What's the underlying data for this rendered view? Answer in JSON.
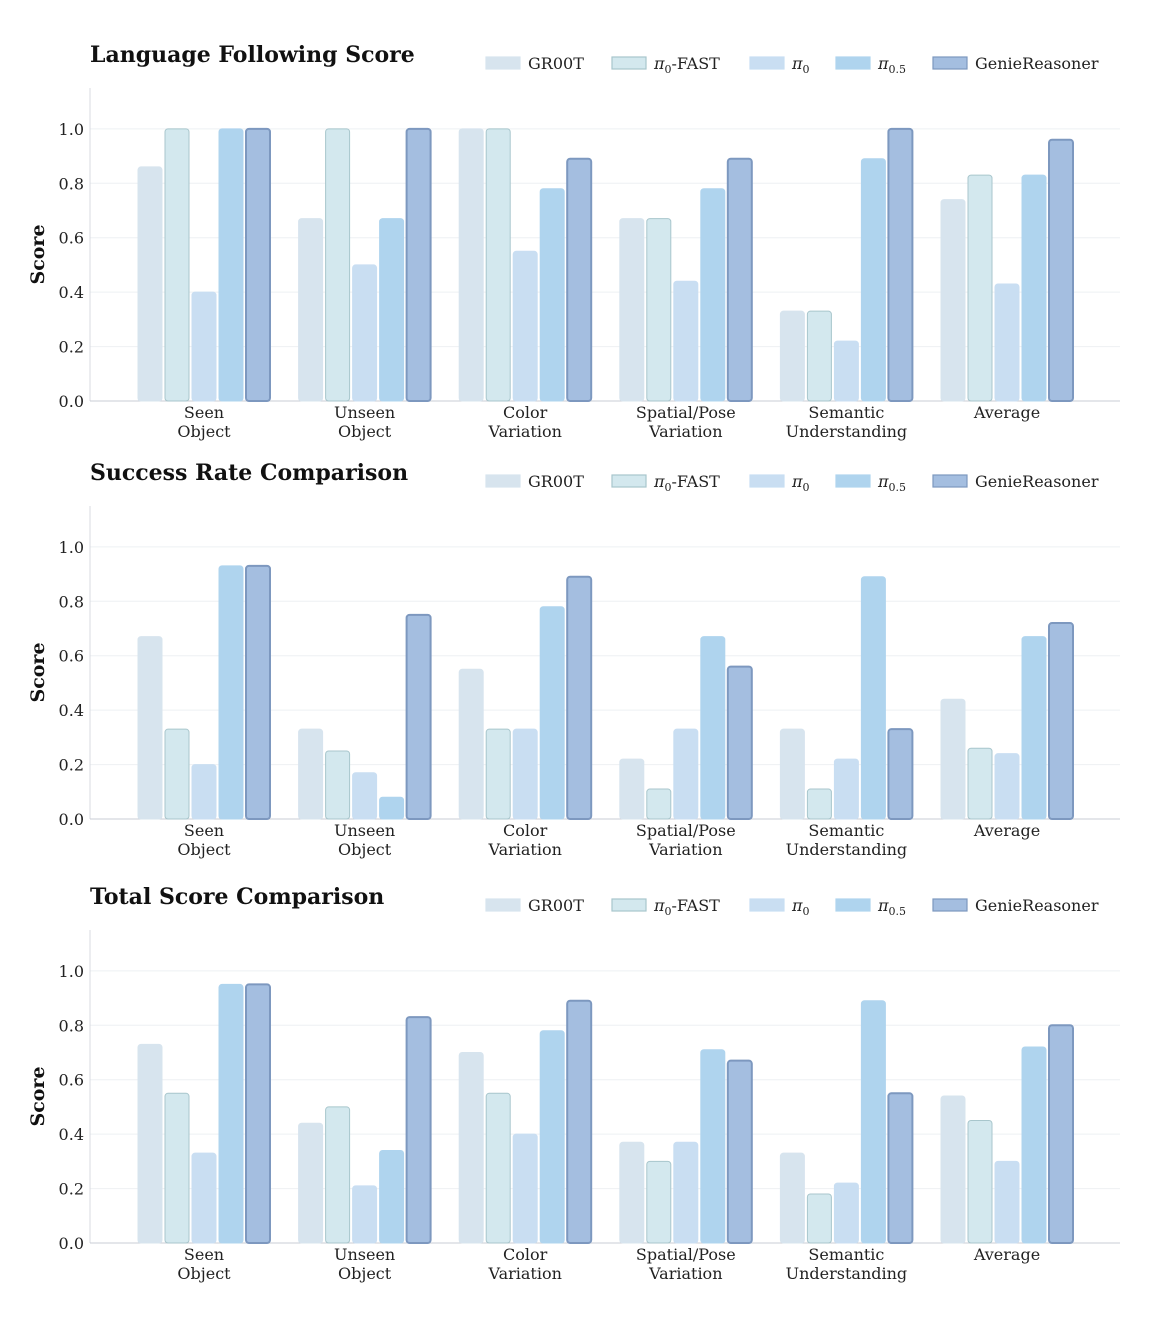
{
  "series_style": [
    {
      "key": "GR00T",
      "fill": "#d7e4ee",
      "stroke": "#d7e4ee",
      "main": "GR00T",
      "sub": "",
      "suffix": ""
    },
    {
      "key": "pi0-FAST",
      "fill": "#d3e8ee",
      "stroke": "#a8c6cc",
      "main": "π",
      "sub": "0",
      "suffix": "-FAST"
    },
    {
      "key": "pi0",
      "fill": "#c9def2",
      "stroke": "#c9def2",
      "main": "π",
      "sub": "0",
      "suffix": ""
    },
    {
      "key": "pi0.5",
      "fill": "#afd4ee",
      "stroke": "#afd4ee",
      "main": "π",
      "sub": "0.5",
      "suffix": ""
    },
    {
      "key": "GenieReasoner",
      "fill": "#a4bee0",
      "stroke": "#7d98bf",
      "main": "GenieReasoner",
      "sub": "",
      "suffix": ""
    }
  ],
  "chart_data": [
    {
      "type": "bar",
      "title": "Language Following Score",
      "ylabel": "Score",
      "ylim": [
        0,
        1.15
      ],
      "yticks": [
        "0.0",
        "0.2",
        "0.4",
        "0.6",
        "0.8",
        "1.0"
      ],
      "grid": true,
      "legend": "top-right",
      "categories": [
        [
          "Seen",
          "Object"
        ],
        [
          "Unseen",
          "Object"
        ],
        [
          "Color",
          "Variation"
        ],
        [
          "Spatial/Pose",
          "Variation"
        ],
        [
          "Semantic",
          "Understanding"
        ],
        [
          "Average"
        ]
      ],
      "series": [
        {
          "name": "GR00T",
          "values": [
            0.86,
            0.67,
            1.0,
            0.67,
            0.33,
            0.74
          ]
        },
        {
          "name": "π0-FAST",
          "values": [
            1.0,
            1.0,
            1.0,
            0.67,
            0.33,
            0.83
          ]
        },
        {
          "name": "π0",
          "values": [
            0.4,
            0.5,
            0.55,
            0.44,
            0.22,
            0.43
          ]
        },
        {
          "name": "π0.5",
          "values": [
            1.0,
            0.67,
            0.78,
            0.78,
            0.89,
            0.83
          ]
        },
        {
          "name": "GenieReasoner",
          "values": [
            1.0,
            1.0,
            0.89,
            0.89,
            1.0,
            0.96
          ]
        }
      ]
    },
    {
      "type": "bar",
      "title": "Success Rate Comparison",
      "ylabel": "Score",
      "ylim": [
        0,
        1.15
      ],
      "yticks": [
        "0.0",
        "0.2",
        "0.4",
        "0.6",
        "0.8",
        "1.0"
      ],
      "grid": true,
      "legend": "top-right",
      "categories": [
        [
          "Seen",
          "Object"
        ],
        [
          "Unseen",
          "Object"
        ],
        [
          "Color",
          "Variation"
        ],
        [
          "Spatial/Pose",
          "Variation"
        ],
        [
          "Semantic",
          "Understanding"
        ],
        [
          "Average"
        ]
      ],
      "series": [
        {
          "name": "GR00T",
          "values": [
            0.67,
            0.33,
            0.55,
            0.22,
            0.33,
            0.44
          ]
        },
        {
          "name": "π0-FAST",
          "values": [
            0.33,
            0.25,
            0.33,
            0.11,
            0.11,
            0.26
          ]
        },
        {
          "name": "π0",
          "values": [
            0.2,
            0.17,
            0.33,
            0.33,
            0.22,
            0.24
          ]
        },
        {
          "name": "π0.5",
          "values": [
            0.93,
            0.08,
            0.78,
            0.67,
            0.89,
            0.67
          ]
        },
        {
          "name": "GenieReasoner",
          "values": [
            0.93,
            0.75,
            0.89,
            0.56,
            0.33,
            0.72
          ]
        }
      ]
    },
    {
      "type": "bar",
      "title": "Total Score Comparison",
      "ylabel": "Score",
      "ylim": [
        0,
        1.15
      ],
      "yticks": [
        "0.0",
        "0.2",
        "0.4",
        "0.6",
        "0.8",
        "1.0"
      ],
      "grid": true,
      "legend": "top-right",
      "categories": [
        [
          "Seen",
          "Object"
        ],
        [
          "Unseen",
          "Object"
        ],
        [
          "Color",
          "Variation"
        ],
        [
          "Spatial/Pose",
          "Variation"
        ],
        [
          "Semantic",
          "Understanding"
        ],
        [
          "Average"
        ]
      ],
      "series": [
        {
          "name": "GR00T",
          "values": [
            0.73,
            0.44,
            0.7,
            0.37,
            0.33,
            0.54
          ]
        },
        {
          "name": "π0-FAST",
          "values": [
            0.55,
            0.5,
            0.55,
            0.3,
            0.18,
            0.45
          ]
        },
        {
          "name": "π0",
          "values": [
            0.33,
            0.21,
            0.4,
            0.37,
            0.22,
            0.3
          ]
        },
        {
          "name": "π0.5",
          "values": [
            0.95,
            0.34,
            0.78,
            0.71,
            0.89,
            0.72
          ]
        },
        {
          "name": "GenieReasoner",
          "values": [
            0.95,
            0.83,
            0.89,
            0.67,
            0.55,
            0.8
          ]
        }
      ]
    }
  ]
}
